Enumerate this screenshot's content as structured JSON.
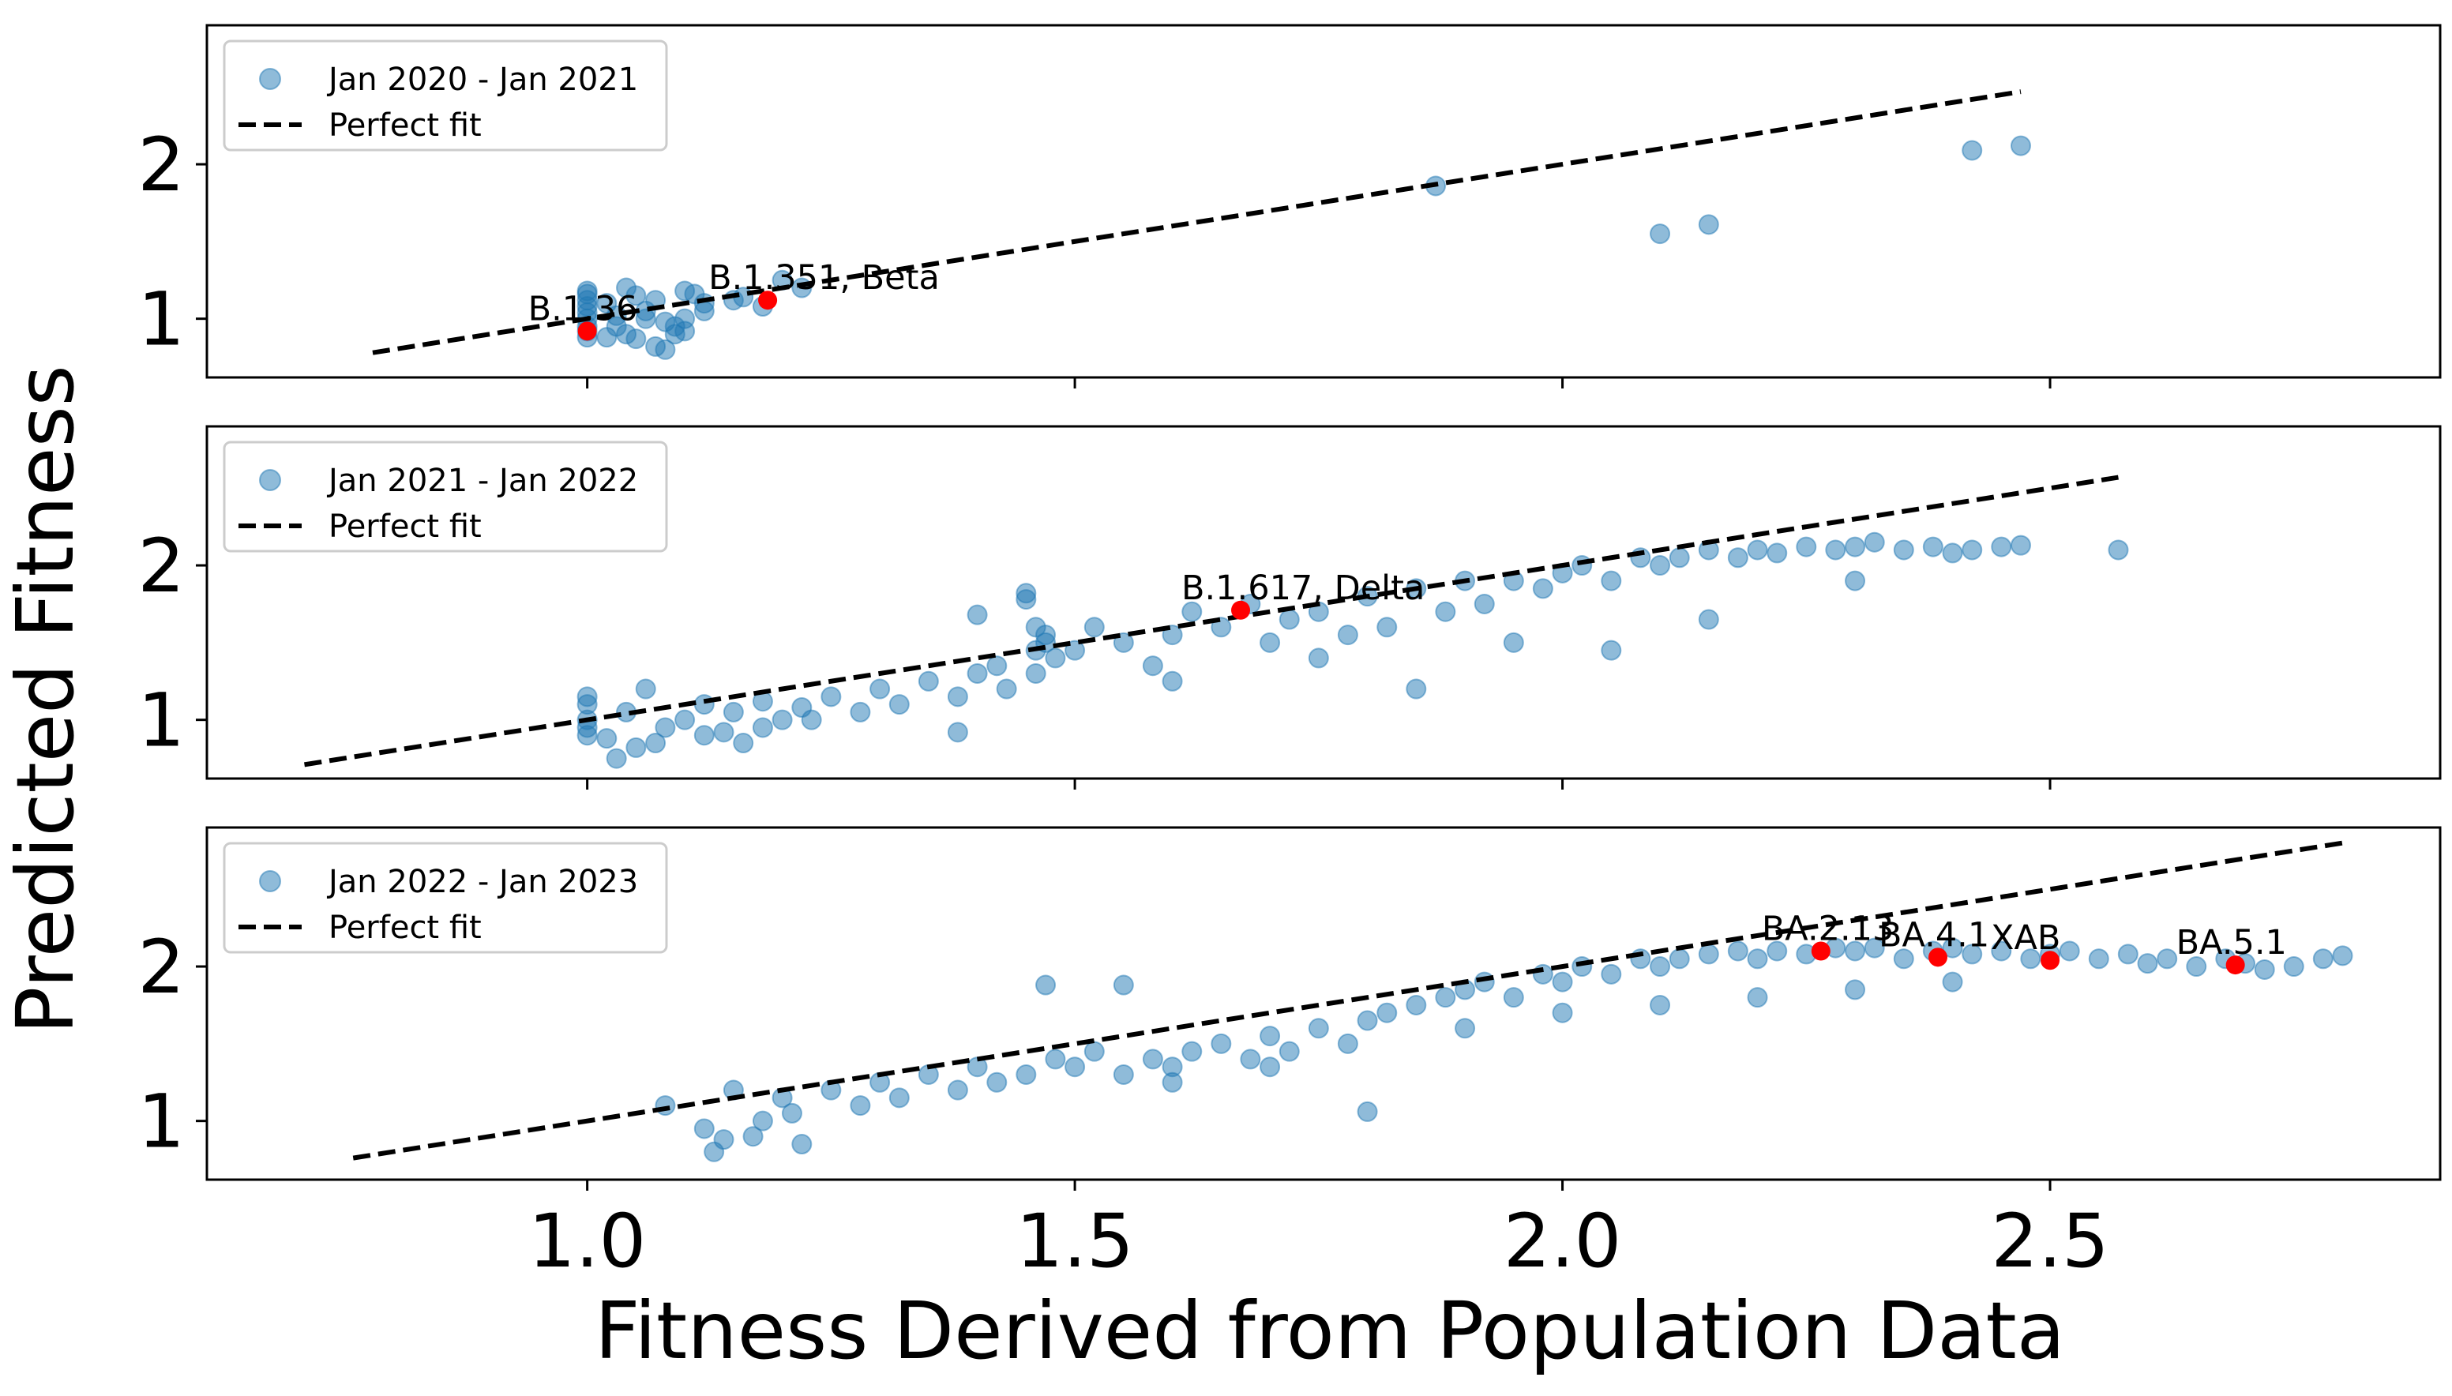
{
  "figure": {
    "xlabel": "Fitness Derived from Population Data",
    "ylabel": "Predicted Fitness",
    "colors": {
      "points": "#1f77b4",
      "highlight": "#ff0000",
      "fit_line": "#000000"
    }
  },
  "chart_data": [
    {
      "type": "scatter",
      "legend": {
        "series_label": "Jan 2020 - Jan 2021",
        "fit_label": "Perfect fit",
        "placement": "upper-left"
      },
      "xlim": [
        0.61,
        2.9
      ],
      "ylim": [
        0.62,
        2.9
      ],
      "yticks": [
        1,
        2
      ],
      "xticks": [
        1.0,
        1.5,
        2.0,
        2.5
      ],
      "show_xtick_labels": false,
      "perfect_fit": {
        "x0": 0.78,
        "x1": 2.47
      },
      "series": [
        {
          "name": "Jan 2020 - Jan 2021",
          "x": [
            1.0,
            1.0,
            1.0,
            1.0,
            1.0,
            1.0,
            1.0,
            1.0,
            1.0,
            1.02,
            1.03,
            1.04,
            1.05,
            1.06,
            1.07,
            1.08,
            1.09,
            1.09,
            1.1,
            1.1,
            1.12,
            1.15,
            1.18,
            1.2,
            1.22,
            1.05,
            1.07,
            1.04,
            1.03,
            1.02,
            1.06,
            1.08,
            1.1,
            1.12,
            1.16,
            1.11,
            1.87,
            2.1,
            2.15,
            2.42,
            2.47
          ],
          "y": [
            0.88,
            0.92,
            0.95,
            1.0,
            1.04,
            1.08,
            1.12,
            1.16,
            1.18,
            0.88,
            0.95,
            0.9,
            0.87,
            1.05,
            0.82,
            0.8,
            0.95,
            0.9,
            1.18,
            0.92,
            1.1,
            1.12,
            1.08,
            1.25,
            1.2,
            1.15,
            1.12,
            1.2,
            1.02,
            1.1,
            1.0,
            0.98,
            1.0,
            1.05,
            1.14,
            1.16,
            1.86,
            1.55,
            1.61,
            2.09,
            2.12
          ]
        }
      ],
      "highlights": [
        {
          "label": "B.1.36",
          "x": 1.0,
          "y": 0.92
        },
        {
          "label": "B.1.351, Beta",
          "x": 1.185,
          "y": 1.12
        }
      ]
    },
    {
      "type": "scatter",
      "legend": {
        "series_label": "Jan 2021 - Jan 2022",
        "fit_label": "Perfect fit",
        "placement": "upper-left"
      },
      "xlim": [
        0.61,
        2.9
      ],
      "ylim": [
        0.62,
        2.9
      ],
      "yticks": [
        1,
        2
      ],
      "xticks": [
        1.0,
        1.5,
        2.0,
        2.5
      ],
      "show_xtick_labels": false,
      "perfect_fit": {
        "x0": 0.71,
        "x1": 2.57
      },
      "series": [
        {
          "name": "Jan 2021 - Jan 2022",
          "x": [
            1.0,
            1.0,
            1.0,
            1.0,
            1.0,
            1.02,
            1.04,
            1.05,
            1.06,
            1.08,
            1.1,
            1.12,
            1.14,
            1.15,
            1.16,
            1.18,
            1.2,
            1.22,
            1.25,
            1.28,
            1.3,
            1.32,
            1.35,
            1.38,
            1.4,
            1.4,
            1.42,
            1.43,
            1.45,
            1.45,
            1.46,
            1.46,
            1.46,
            1.47,
            1.47,
            1.48,
            1.5,
            1.52,
            1.55,
            1.58,
            1.6,
            1.62,
            1.65,
            1.68,
            1.7,
            1.72,
            1.75,
            1.78,
            1.8,
            1.82,
            1.85,
            1.88,
            1.9,
            1.92,
            1.95,
            1.98,
            2.0,
            2.02,
            2.05,
            2.08,
            2.1,
            2.12,
            2.15,
            2.18,
            2.2,
            2.22,
            2.25,
            2.28,
            2.3,
            2.32,
            2.35,
            2.38,
            2.4,
            2.42,
            2.45,
            2.47,
            2.57,
            1.03,
            1.07,
            1.12,
            1.18,
            1.23,
            1.6,
            1.75,
            1.85,
            1.95,
            2.05,
            2.15,
            2.3,
            1.38
          ],
          "y": [
            1.0,
            1.1,
            1.15,
            0.9,
            0.95,
            0.88,
            1.05,
            0.82,
            1.2,
            0.95,
            1.0,
            1.1,
            0.92,
            1.05,
            0.85,
            1.12,
            1.0,
            1.08,
            1.15,
            1.05,
            1.2,
            1.1,
            1.25,
            1.15,
            1.3,
            1.68,
            1.35,
            1.2,
            1.82,
            1.78,
            1.6,
            1.45,
            1.3,
            1.55,
            1.5,
            1.4,
            1.45,
            1.6,
            1.5,
            1.35,
            1.55,
            1.7,
            1.6,
            1.75,
            1.5,
            1.65,
            1.7,
            1.55,
            1.8,
            1.6,
            1.85,
            1.7,
            1.9,
            1.75,
            1.9,
            1.85,
            1.95,
            2.0,
            1.9,
            2.05,
            2.0,
            2.05,
            2.1,
            2.05,
            2.1,
            2.08,
            2.12,
            2.1,
            2.12,
            2.15,
            2.1,
            2.12,
            2.08,
            2.1,
            2.12,
            2.13,
            2.1,
            0.75,
            0.85,
            0.9,
            0.95,
            1.0,
            1.25,
            1.4,
            1.2,
            1.5,
            1.45,
            1.65,
            1.9,
            0.92
          ],
          "comment": null
        }
      ],
      "highlights": [
        {
          "label": "B.1.617, Delta",
          "x": 1.67,
          "y": 1.71
        }
      ]
    },
    {
      "type": "scatter",
      "legend": {
        "series_label": "Jan 2022 - Jan 2023",
        "fit_label": "Perfect fit",
        "placement": "upper-left"
      },
      "xlim": [
        0.61,
        2.9
      ],
      "ylim": [
        0.62,
        2.9
      ],
      "yticks": [
        1,
        2
      ],
      "xticks": [
        1.0,
        1.5,
        2.0,
        2.5
      ],
      "xtick_labels": [
        "1.0",
        "1.5",
        "2.0",
        "2.5"
      ],
      "show_xtick_labels": true,
      "perfect_fit": {
        "x0": 0.76,
        "x1": 2.8
      },
      "series": [
        {
          "name": "Jan 2022 - Jan 2023",
          "x": [
            1.08,
            1.12,
            1.13,
            1.15,
            1.18,
            1.2,
            1.22,
            1.25,
            1.28,
            1.3,
            1.32,
            1.35,
            1.38,
            1.4,
            1.42,
            1.45,
            1.48,
            1.5,
            1.52,
            1.55,
            1.58,
            1.6,
            1.62,
            1.65,
            1.68,
            1.7,
            1.72,
            1.75,
            1.78,
            1.8,
            1.82,
            1.85,
            1.88,
            1.9,
            1.92,
            1.95,
            1.98,
            2.0,
            2.02,
            2.05,
            2.08,
            2.1,
            2.12,
            2.15,
            2.18,
            2.2,
            2.22,
            2.25,
            2.28,
            2.3,
            2.32,
            2.35,
            2.38,
            2.4,
            2.42,
            2.45,
            2.48,
            2.5,
            2.52,
            2.55,
            2.58,
            2.6,
            2.62,
            2.65,
            2.68,
            2.7,
            2.72,
            2.75,
            2.78,
            2.8,
            1.47,
            1.55,
            1.8,
            1.14,
            1.17,
            1.21,
            1.6,
            1.7,
            1.9,
            2.0,
            2.1,
            2.2,
            2.3,
            2.4
          ],
          "y": [
            1.1,
            0.95,
            0.8,
            1.2,
            1.0,
            1.15,
            0.85,
            1.2,
            1.1,
            1.25,
            1.15,
            1.3,
            1.2,
            1.35,
            1.25,
            1.3,
            1.4,
            1.35,
            1.45,
            1.3,
            1.4,
            1.35,
            1.45,
            1.5,
            1.4,
            1.55,
            1.45,
            1.6,
            1.5,
            1.65,
            1.7,
            1.75,
            1.8,
            1.85,
            1.9,
            1.8,
            1.95,
            1.9,
            2.0,
            1.95,
            2.05,
            2.0,
            2.05,
            2.08,
            2.1,
            2.05,
            2.1,
            2.08,
            2.12,
            2.1,
            2.12,
            2.05,
            2.1,
            2.12,
            2.08,
            2.1,
            2.05,
            2.08,
            2.1,
            2.05,
            2.08,
            2.02,
            2.05,
            2.0,
            2.05,
            2.02,
            1.98,
            2.0,
            2.05,
            2.07,
            1.88,
            1.88,
            1.06,
            0.88,
            0.9,
            1.05,
            1.25,
            1.35,
            1.6,
            1.7,
            1.75,
            1.8,
            1.85,
            1.9
          ]
        }
      ],
      "highlights": [
        {
          "label": "BA.2.13",
          "x": 2.265,
          "y": 2.1
        },
        {
          "label": "BA.4.1",
          "x": 2.385,
          "y": 2.06
        },
        {
          "label": "XAB",
          "x": 2.5,
          "y": 2.04
        },
        {
          "label": "BA.5.1",
          "x": 2.69,
          "y": 2.01
        }
      ]
    }
  ]
}
